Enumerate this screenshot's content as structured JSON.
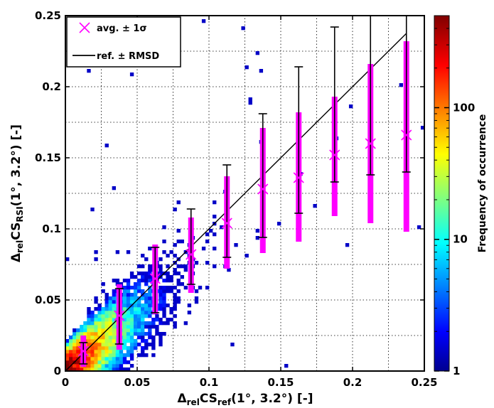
{
  "chart_data": {
    "type": "scatter",
    "subtype": "2d-density-histogram-with-binned-error-bars",
    "xlabel": {
      "base": "Δ",
      "sub1": "rel",
      "mid": "CS",
      "sub2": "ref",
      "tail": "(1°, 3.2°) [-]"
    },
    "ylabel": {
      "base": "Δ",
      "sub1": "rel",
      "mid": "CS",
      "sub2": "RSI",
      "tail": "(1°, 3.2°) [-]"
    },
    "xlim": [
      0,
      0.25
    ],
    "ylim": [
      0,
      0.25
    ],
    "xticks": [
      0,
      0.05,
      0.1,
      0.15,
      0.2,
      0.25
    ],
    "xtick_labels": [
      "0",
      "0.05",
      "0.1",
      "0.15",
      "0.2",
      "0.25"
    ],
    "yticks": [
      0,
      0.05,
      0.1,
      0.15,
      0.2,
      0.25
    ],
    "ytick_labels": [
      "0",
      "0.05",
      "0.1",
      "0.15",
      "0.2",
      "0.25"
    ],
    "grid": true,
    "legend": {
      "position": "top-left",
      "entries": [
        {
          "marker": "x",
          "color": "#ff00ff",
          "label": "avg. ± 1σ"
        },
        {
          "marker": "line",
          "color": "#000000",
          "label": "ref. ± RMSD"
        }
      ]
    },
    "colorbar": {
      "label": "Frequency of occurrence",
      "scale": "log",
      "range": [
        1,
        500
      ],
      "ticks": [
        1,
        10,
        100
      ],
      "tick_labels": [
        "1",
        "10",
        "100"
      ],
      "colormap": "jet"
    },
    "reference_line": {
      "x": [
        0,
        0.2375
      ],
      "y": [
        0,
        0.2375
      ]
    },
    "bins": [
      {
        "x": 0.0125,
        "avg": 0.014,
        "sd_low": 0.003,
        "sd_high": 0.025,
        "rmsd_low": 0.005,
        "rmsd_high": 0.02
      },
      {
        "x": 0.0375,
        "avg": 0.039,
        "sd_low": 0.015,
        "sd_high": 0.061,
        "rmsd_low": 0.019,
        "rmsd_high": 0.058
      },
      {
        "x": 0.0625,
        "avg": 0.065,
        "sd_low": 0.04,
        "sd_high": 0.089,
        "rmsd_low": 0.041,
        "rmsd_high": 0.087
      },
      {
        "x": 0.0875,
        "avg": 0.082,
        "sd_low": 0.055,
        "sd_high": 0.108,
        "rmsd_low": 0.061,
        "rmsd_high": 0.114
      },
      {
        "x": 0.1125,
        "avg": 0.104,
        "sd_low": 0.072,
        "sd_high": 0.137,
        "rmsd_low": 0.08,
        "rmsd_high": 0.145
      },
      {
        "x": 0.1375,
        "avg": 0.128,
        "sd_low": 0.083,
        "sd_high": 0.171,
        "rmsd_low": 0.094,
        "rmsd_high": 0.181
      },
      {
        "x": 0.1625,
        "avg": 0.136,
        "sd_low": 0.091,
        "sd_high": 0.182,
        "rmsd_low": 0.111,
        "rmsd_high": 0.214
      },
      {
        "x": 0.1875,
        "avg": 0.152,
        "sd_low": 0.109,
        "sd_high": 0.193,
        "rmsd_low": 0.133,
        "rmsd_high": 0.242
      },
      {
        "x": 0.2125,
        "avg": 0.16,
        "sd_low": 0.104,
        "sd_high": 0.216,
        "rmsd_low": 0.138,
        "rmsd_high": 0.287
      },
      {
        "x": 0.2375,
        "avg": 0.166,
        "sd_low": 0.098,
        "sd_high": 0.232,
        "rmsd_low": 0.14,
        "rmsd_high": 0.335
      }
    ],
    "density_notes": "dense cloud concentrated near the origin along the 1:1 line, sparse scatter elsewhere"
  },
  "colors": {
    "marker": "#ff00ff",
    "reference": "#000000",
    "grid": "#000000",
    "background": "#ffffff"
  }
}
